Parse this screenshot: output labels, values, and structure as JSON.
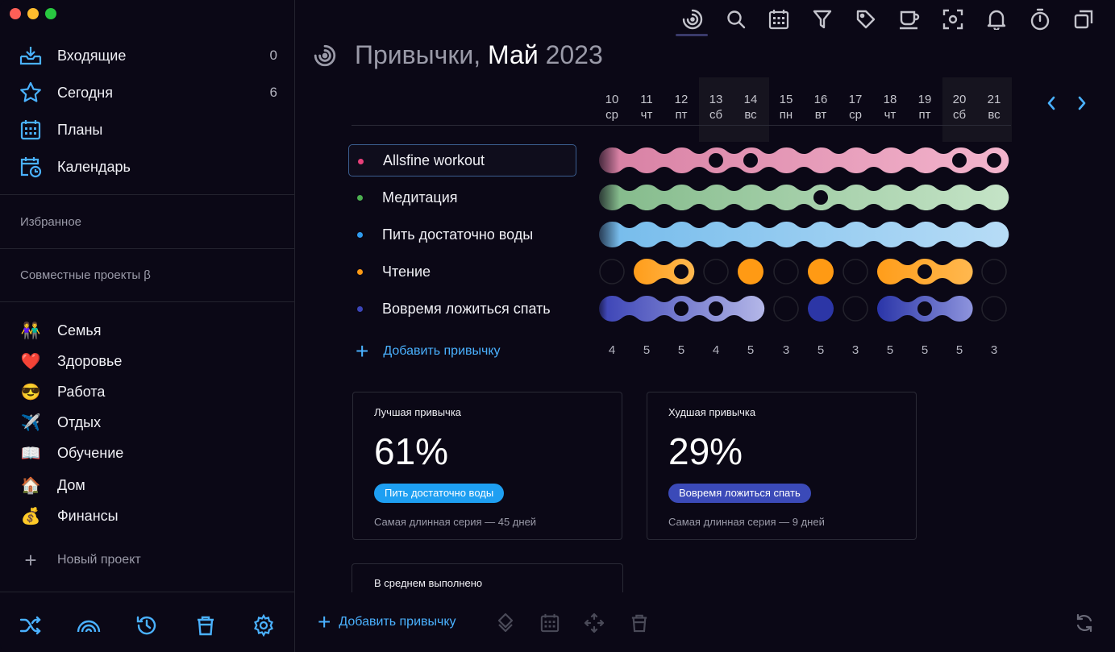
{
  "sidebar": {
    "nav": [
      {
        "label": "Входящие",
        "count": "0",
        "icon": "inbox-icon"
      },
      {
        "label": "Сегодня",
        "count": "6",
        "icon": "star-icon"
      },
      {
        "label": "Планы",
        "count": "",
        "icon": "calendar-grid-icon"
      },
      {
        "label": "Календарь",
        "count": "",
        "icon": "calendar-clock-icon"
      }
    ],
    "favorites_label": "Избранное",
    "shared_label": "Совместные проекты β",
    "projects": [
      {
        "emoji": "👫",
        "label": "Семья"
      },
      {
        "emoji": "❤️",
        "label": "Здоровье"
      },
      {
        "emoji": "😎",
        "label": "Работа"
      },
      {
        "emoji": "✈️",
        "label": "Отдых"
      },
      {
        "emoji": "📖",
        "label": "Обучение"
      },
      {
        "emoji": "🏠",
        "label": "Дом"
      },
      {
        "emoji": "💰",
        "label": "Финансы"
      }
    ],
    "new_project": "Новый проект",
    "footer_icons": [
      "shuffle-icon",
      "rainbow-icon",
      "history-icon",
      "trash-icon",
      "settings-icon"
    ]
  },
  "toolbar": {
    "icons": [
      "habits-icon",
      "search-icon",
      "calendar-icon",
      "filter-icon",
      "tag-icon",
      "coffee-icon",
      "focus-icon",
      "bell-icon",
      "timer-icon",
      "windows-icon"
    ]
  },
  "header": {
    "title_prefix": "Привычки,",
    "month": "Май",
    "year": "2023"
  },
  "days": [
    {
      "num": "10",
      "dow": "ср"
    },
    {
      "num": "11",
      "dow": "чт"
    },
    {
      "num": "12",
      "dow": "пт"
    },
    {
      "num": "13",
      "dow": "сб"
    },
    {
      "num": "14",
      "dow": "вс"
    },
    {
      "num": "15",
      "dow": "пн"
    },
    {
      "num": "16",
      "dow": "вт"
    },
    {
      "num": "17",
      "dow": "ср"
    },
    {
      "num": "18",
      "dow": "чт"
    },
    {
      "num": "19",
      "dow": "пт"
    },
    {
      "num": "20",
      "dow": "сб"
    },
    {
      "num": "21",
      "dow": "вс"
    }
  ],
  "habits": [
    {
      "name": "Allsfine workout",
      "color": "#e8407a",
      "selected": true
    },
    {
      "name": "Медитация",
      "color": "#4caf50",
      "selected": false
    },
    {
      "name": "Пить достаточно воды",
      "color": "#2f9cf0",
      "selected": false
    },
    {
      "name": "Чтение",
      "color": "#ff9a14",
      "selected": false
    },
    {
      "name": "Вовремя ложиться спать",
      "color": "#3b45b8",
      "selected": false
    }
  ],
  "add_habit": "Добавить привычку",
  "counts": [
    "4",
    "5",
    "5",
    "4",
    "5",
    "3",
    "5",
    "3",
    "5",
    "5",
    "5",
    "3"
  ],
  "cards": {
    "best": {
      "label": "Лучшая привычка",
      "percent": "61%",
      "habit": "Пить достаточно воды",
      "habit_color": "#1e9ff2",
      "streak": "Самая длинная серия — 45 дней"
    },
    "worst": {
      "label": "Худшая привычка",
      "percent": "29%",
      "habit": "Вовремя ложиться спать",
      "habit_color": "#3b4ab8",
      "streak": "Самая длинная серия — 9 дней"
    },
    "avg": {
      "label": "В среднем выполнено"
    }
  },
  "footer": {
    "add_label": "Добавить привычку",
    "icons": [
      "priority-icon",
      "calendar-icon",
      "move-icon",
      "trash-icon",
      "sync-icon"
    ]
  }
}
